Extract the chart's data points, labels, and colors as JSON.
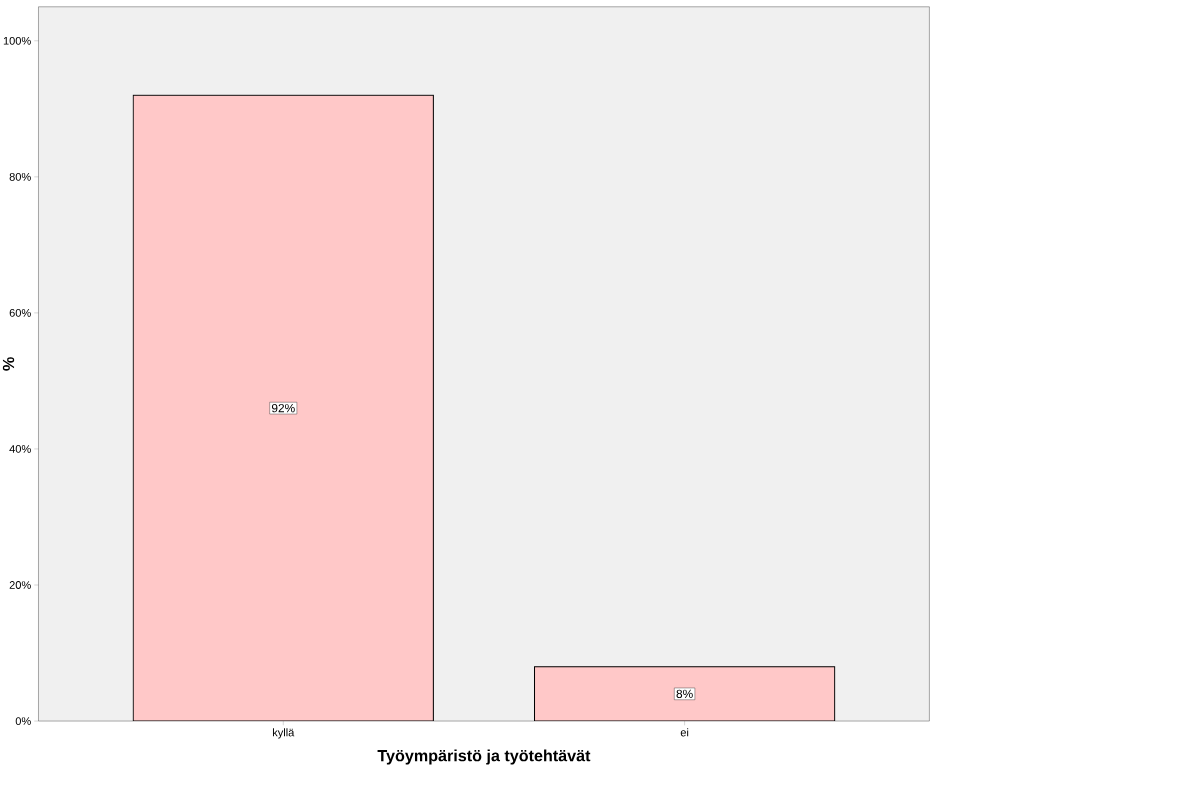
{
  "chart_data": {
    "type": "bar",
    "xlabel": "Työympäristö ja työtehtävät",
    "ylabel": "%",
    "categories": [
      "kyllä",
      "ei"
    ],
    "values": [
      92,
      8
    ],
    "value_labels": [
      "92%",
      "8%"
    ],
    "color": "#ffc8c8",
    "ylim": [
      0,
      105
    ],
    "yticks": [
      {
        "value": 0,
        "label": "0%"
      },
      {
        "value": 20,
        "label": "20%"
      },
      {
        "value": 40,
        "label": "40%"
      },
      {
        "value": 60,
        "label": "60%"
      },
      {
        "value": 80,
        "label": "80%"
      },
      {
        "value": 100,
        "label": "100%"
      }
    ],
    "grid": false
  }
}
